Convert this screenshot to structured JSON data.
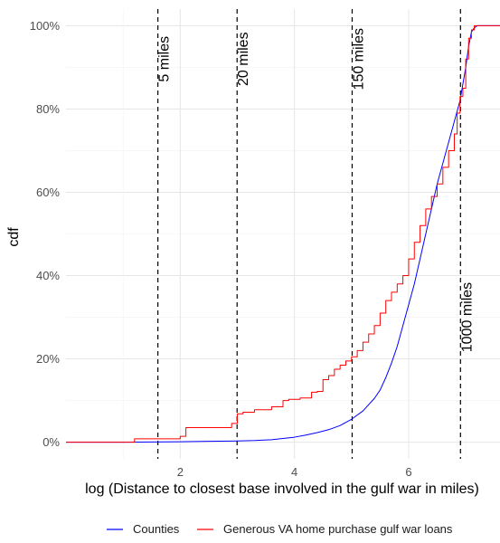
{
  "chart_data": {
    "type": "line",
    "title": "",
    "xlabel": "log (Distance to closest base involved in the gulf war in miles)",
    "ylabel": "cdf",
    "xlim": [
      0.0,
      7.6
    ],
    "ylim": [
      -0.04,
      1.04
    ],
    "x_ticks": [
      2,
      4,
      6
    ],
    "y_ticks": [
      0,
      0.2,
      0.4,
      0.6,
      0.8,
      1.0
    ],
    "y_tick_labels": [
      "0%",
      "20%",
      "40%",
      "60%",
      "80%",
      "100%"
    ],
    "grid": true,
    "legend_position": "bottom",
    "vlines": [
      {
        "x": 1.609,
        "label": "5 miles",
        "label_y": 0.92
      },
      {
        "x": 2.996,
        "label": "20 miles",
        "label_y": 0.92
      },
      {
        "x": 5.011,
        "label": "150 miles",
        "label_y": 0.92
      },
      {
        "x": 6.908,
        "label": "1000 miles",
        "label_y": 0.3
      }
    ],
    "series": [
      {
        "name": "Counties",
        "color": "#0000ff",
        "step": false,
        "points": [
          [
            0.0,
            0.0
          ],
          [
            1.0,
            0.0
          ],
          [
            2.0,
            0.001
          ],
          [
            2.5,
            0.002
          ],
          [
            3.0,
            0.003
          ],
          [
            3.3,
            0.004
          ],
          [
            3.6,
            0.006
          ],
          [
            3.8,
            0.009
          ],
          [
            4.0,
            0.012
          ],
          [
            4.2,
            0.017
          ],
          [
            4.4,
            0.023
          ],
          [
            4.6,
            0.03
          ],
          [
            4.8,
            0.04
          ],
          [
            5.0,
            0.055
          ],
          [
            5.2,
            0.075
          ],
          [
            5.4,
            0.105
          ],
          [
            5.5,
            0.125
          ],
          [
            5.6,
            0.155
          ],
          [
            5.7,
            0.19
          ],
          [
            5.8,
            0.23
          ],
          [
            5.9,
            0.28
          ],
          [
            6.0,
            0.33
          ],
          [
            6.1,
            0.38
          ],
          [
            6.2,
            0.44
          ],
          [
            6.3,
            0.5
          ],
          [
            6.4,
            0.56
          ],
          [
            6.5,
            0.62
          ],
          [
            6.6,
            0.67
          ],
          [
            6.7,
            0.72
          ],
          [
            6.8,
            0.77
          ],
          [
            6.9,
            0.82
          ],
          [
            7.0,
            0.9
          ],
          [
            7.05,
            0.95
          ],
          [
            7.1,
            0.985
          ],
          [
            7.15,
            0.995
          ],
          [
            7.2,
            1.0
          ],
          [
            7.6,
            1.0
          ]
        ]
      },
      {
        "name": "Generous VA home purchase gulf war loans",
        "color": "#ff0000",
        "step": true,
        "points": [
          [
            0.0,
            0.0
          ],
          [
            1.2,
            0.0
          ],
          [
            1.2,
            0.008
          ],
          [
            2.0,
            0.008
          ],
          [
            2.0,
            0.014
          ],
          [
            2.1,
            0.014
          ],
          [
            2.1,
            0.035
          ],
          [
            2.9,
            0.035
          ],
          [
            2.9,
            0.045
          ],
          [
            3.0,
            0.045
          ],
          [
            3.0,
            0.068
          ],
          [
            3.1,
            0.068
          ],
          [
            3.1,
            0.072
          ],
          [
            3.3,
            0.072
          ],
          [
            3.3,
            0.078
          ],
          [
            3.6,
            0.078
          ],
          [
            3.6,
            0.085
          ],
          [
            3.8,
            0.085
          ],
          [
            3.8,
            0.1
          ],
          [
            3.9,
            0.1
          ],
          [
            3.9,
            0.103
          ],
          [
            4.1,
            0.103
          ],
          [
            4.1,
            0.106
          ],
          [
            4.3,
            0.106
          ],
          [
            4.3,
            0.12
          ],
          [
            4.4,
            0.12
          ],
          [
            4.4,
            0.122
          ],
          [
            4.5,
            0.122
          ],
          [
            4.5,
            0.15
          ],
          [
            4.6,
            0.15
          ],
          [
            4.6,
            0.16
          ],
          [
            4.7,
            0.16
          ],
          [
            4.7,
            0.175
          ],
          [
            4.8,
            0.175
          ],
          [
            4.8,
            0.185
          ],
          [
            4.9,
            0.185
          ],
          [
            4.9,
            0.195
          ],
          [
            5.0,
            0.195
          ],
          [
            5.0,
            0.205
          ],
          [
            5.1,
            0.205
          ],
          [
            5.1,
            0.22
          ],
          [
            5.2,
            0.22
          ],
          [
            5.2,
            0.24
          ],
          [
            5.3,
            0.24
          ],
          [
            5.3,
            0.26
          ],
          [
            5.4,
            0.26
          ],
          [
            5.4,
            0.28
          ],
          [
            5.5,
            0.28
          ],
          [
            5.5,
            0.31
          ],
          [
            5.6,
            0.31
          ],
          [
            5.6,
            0.34
          ],
          [
            5.7,
            0.34
          ],
          [
            5.7,
            0.36
          ],
          [
            5.8,
            0.36
          ],
          [
            5.8,
            0.38
          ],
          [
            5.9,
            0.38
          ],
          [
            5.9,
            0.4
          ],
          [
            6.0,
            0.4
          ],
          [
            6.0,
            0.44
          ],
          [
            6.1,
            0.44
          ],
          [
            6.1,
            0.48
          ],
          [
            6.2,
            0.48
          ],
          [
            6.2,
            0.52
          ],
          [
            6.3,
            0.52
          ],
          [
            6.3,
            0.56
          ],
          [
            6.4,
            0.56
          ],
          [
            6.4,
            0.59
          ],
          [
            6.5,
            0.59
          ],
          [
            6.5,
            0.62
          ],
          [
            6.6,
            0.62
          ],
          [
            6.6,
            0.66
          ],
          [
            6.7,
            0.66
          ],
          [
            6.7,
            0.7
          ],
          [
            6.8,
            0.7
          ],
          [
            6.8,
            0.74
          ],
          [
            6.85,
            0.74
          ],
          [
            6.85,
            0.79
          ],
          [
            6.9,
            0.79
          ],
          [
            6.9,
            0.83
          ],
          [
            6.95,
            0.83
          ],
          [
            6.95,
            0.85
          ],
          [
            7.0,
            0.85
          ],
          [
            7.0,
            0.92
          ],
          [
            7.05,
            0.92
          ],
          [
            7.05,
            0.97
          ],
          [
            7.1,
            0.97
          ],
          [
            7.1,
            0.99
          ],
          [
            7.15,
            0.99
          ],
          [
            7.15,
            1.0
          ],
          [
            7.6,
            1.0
          ]
        ]
      }
    ]
  }
}
